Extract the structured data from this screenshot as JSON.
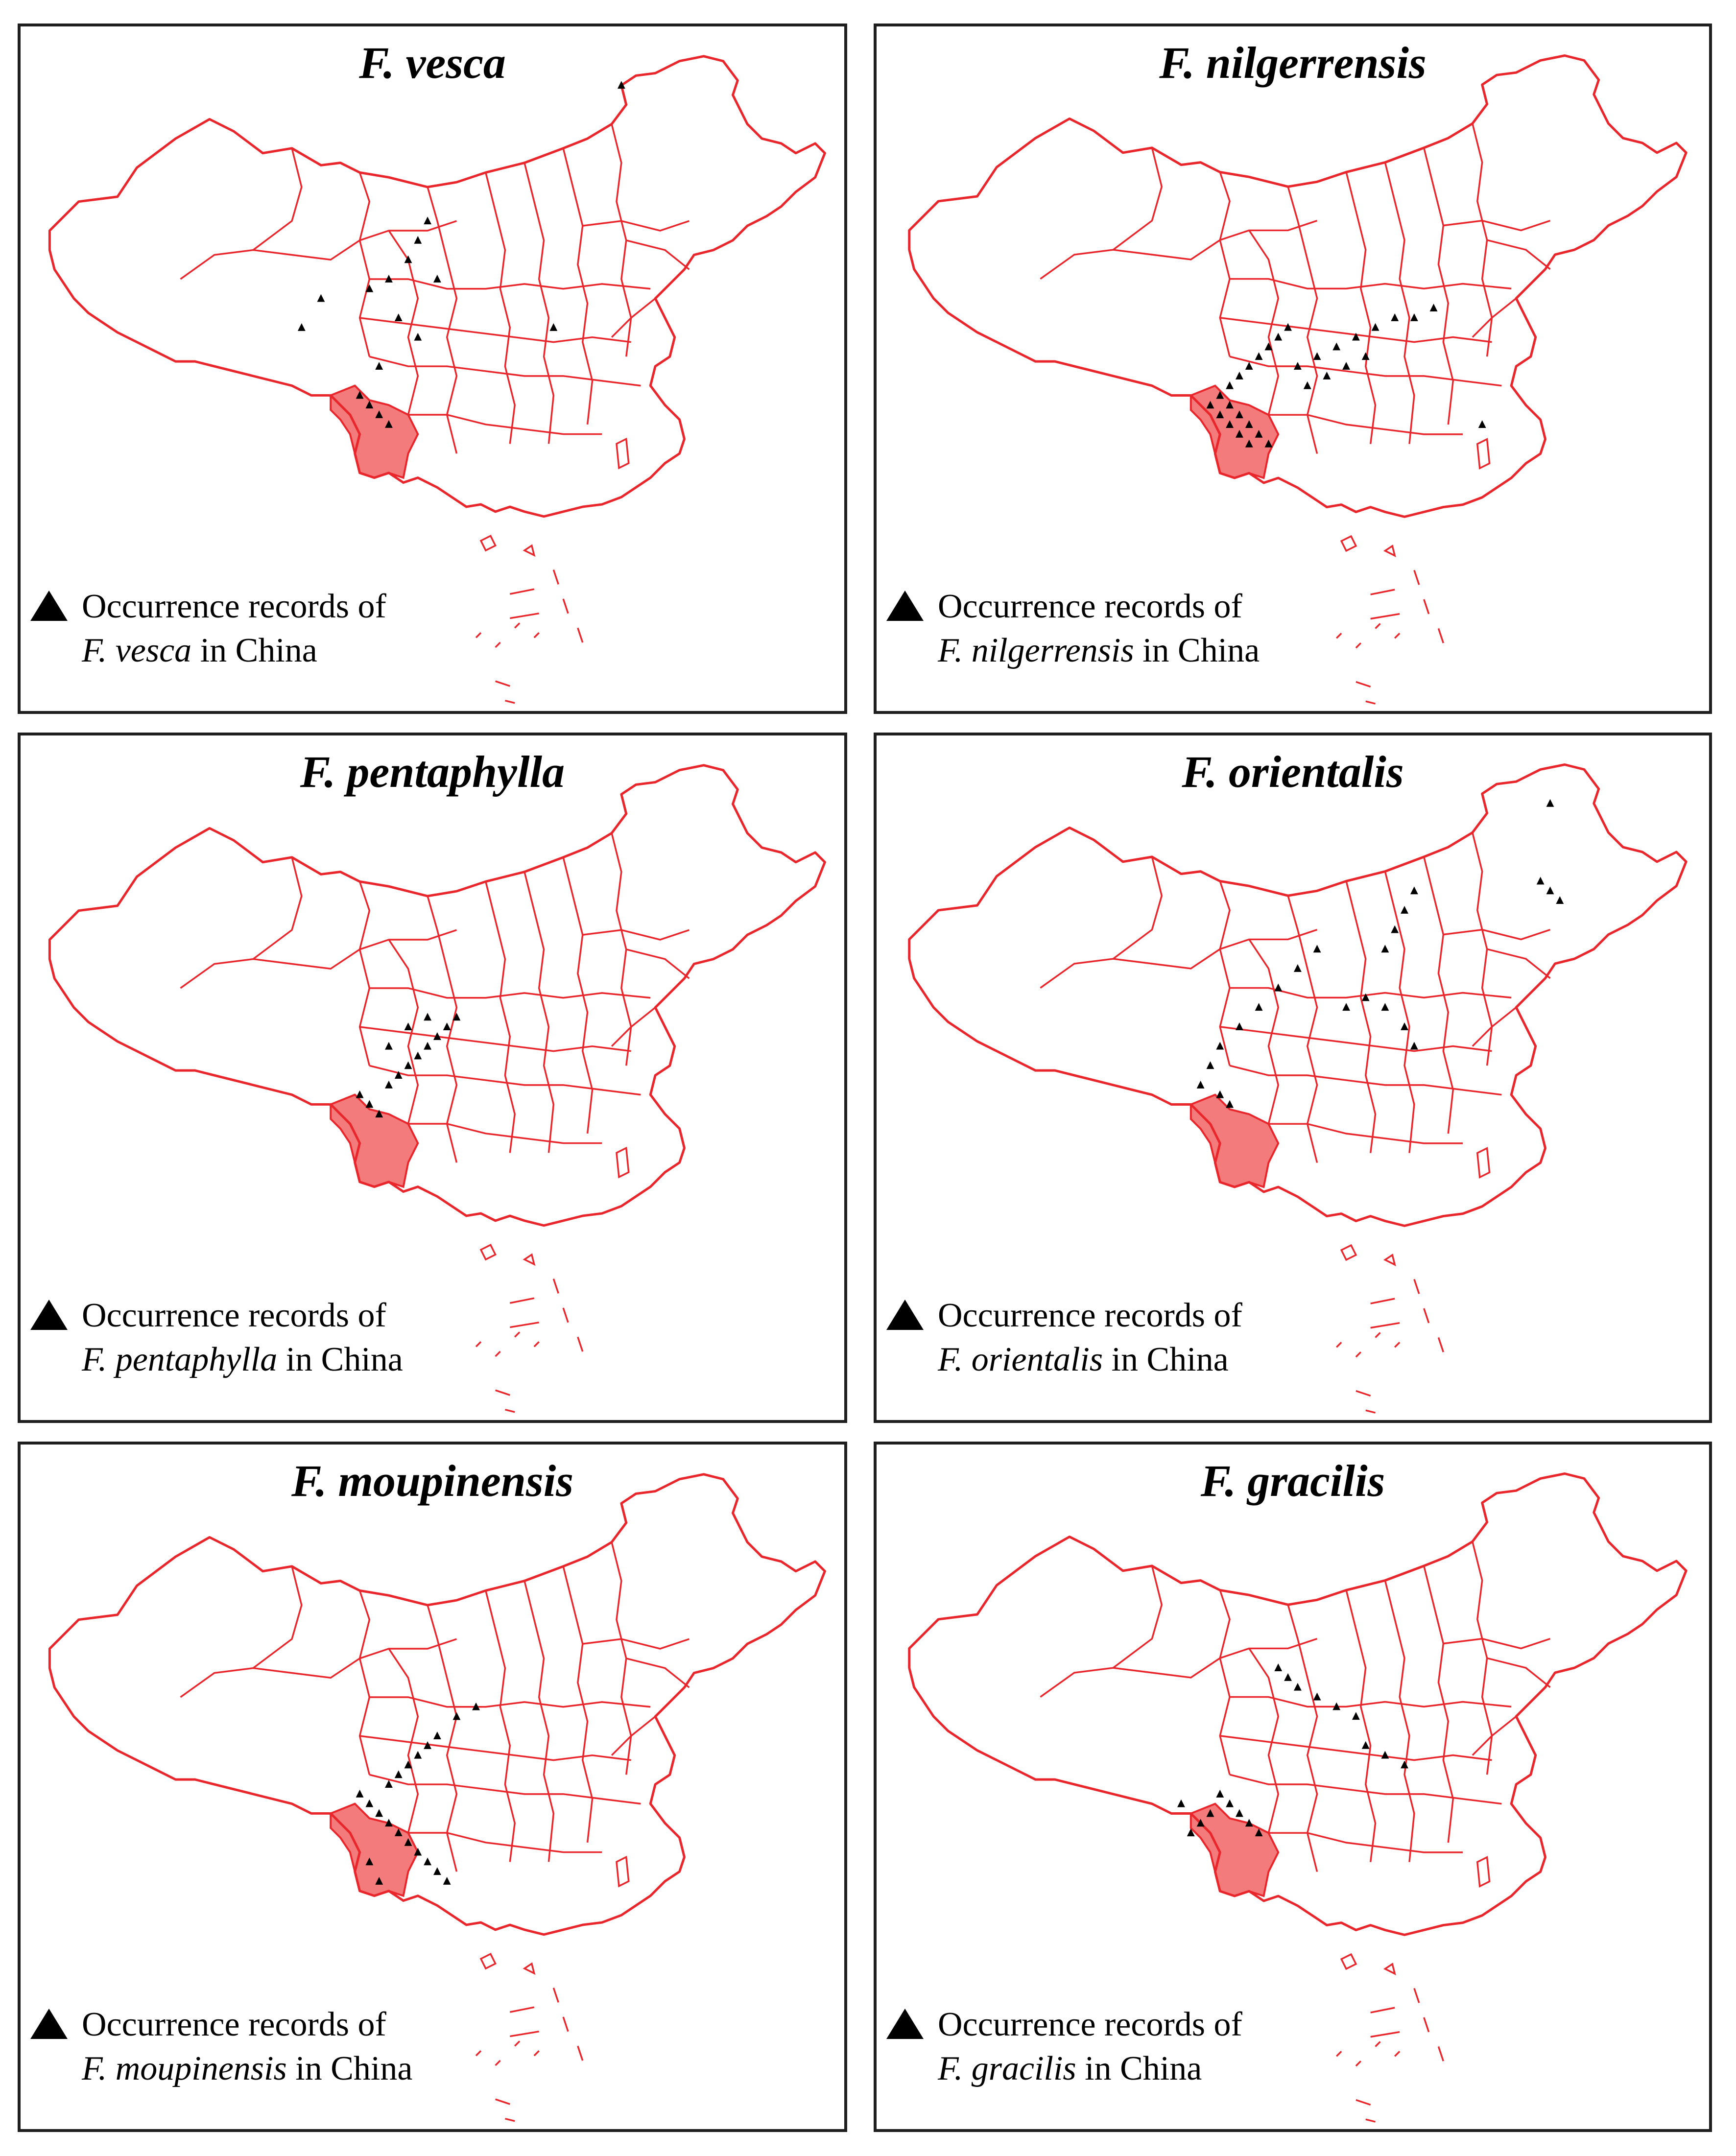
{
  "legend_prefix": "Occurrence records of",
  "legend_suffix": "in China",
  "colors": {
    "boundary": "#e8262b",
    "highlight": "#f47b7b",
    "point": "#000000",
    "frame": "#1f1f1f"
  },
  "icons": {
    "legend": "triangle-up-icon"
  },
  "panels": [
    {
      "title": "F. vesca",
      "species": "F. vesca"
    },
    {
      "title": "F. nilgerrensis",
      "species": "F. nilgerrensis"
    },
    {
      "title": "F. pentaphylla",
      "species": "F. pentaphylla"
    },
    {
      "title": "F. orientalis",
      "species": "F. orientalis"
    },
    {
      "title": "F. moupinensis",
      "species": "F. moupinensis"
    },
    {
      "title": "F. gracilis",
      "species": "F. gracilis"
    }
  ]
}
